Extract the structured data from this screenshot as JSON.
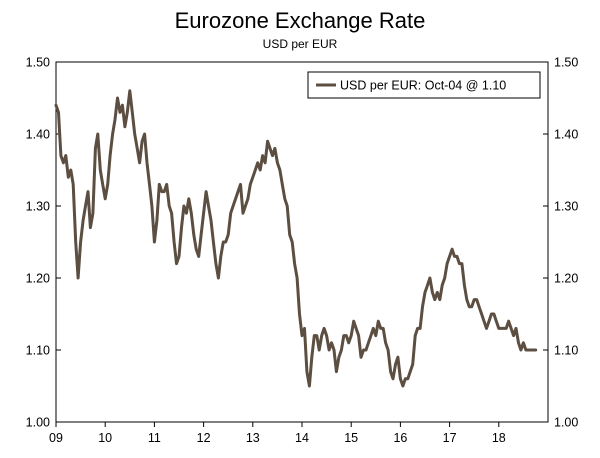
{
  "chart_data": {
    "type": "line",
    "title": "Eurozone Exchange Rate",
    "subtitle": "USD per EUR",
    "xlabel": "",
    "ylabel": "",
    "ylim": [
      1.0,
      1.5
    ],
    "xlim": [
      2009.0,
      2019.0
    ],
    "y_ticks": [
      "1.00",
      "1.10",
      "1.20",
      "1.30",
      "1.40",
      "1.50"
    ],
    "x_ticks": [
      "09",
      "10",
      "11",
      "12",
      "13",
      "14",
      "15",
      "16",
      "17",
      "18"
    ],
    "legend_position": "top-right",
    "line_color": "#5c4e40",
    "series": [
      {
        "name": "USD per EUR: Oct-04 @ 1.10",
        "x": [
          2009.0,
          2009.05,
          2009.1,
          2009.15,
          2009.2,
          2009.25,
          2009.3,
          2009.35,
          2009.4,
          2009.45,
          2009.5,
          2009.55,
          2009.6,
          2009.65,
          2009.7,
          2009.75,
          2009.8,
          2009.85,
          2009.9,
          2009.95,
          2010.0,
          2010.05,
          2010.1,
          2010.15,
          2010.2,
          2010.25,
          2010.3,
          2010.35,
          2010.4,
          2010.45,
          2010.5,
          2010.55,
          2010.6,
          2010.65,
          2010.7,
          2010.75,
          2010.8,
          2010.85,
          2010.9,
          2010.95,
          2011.0,
          2011.05,
          2011.1,
          2011.15,
          2011.2,
          2011.25,
          2011.3,
          2011.35,
          2011.4,
          2011.45,
          2011.5,
          2011.55,
          2011.6,
          2011.65,
          2011.7,
          2011.75,
          2011.8,
          2011.85,
          2011.9,
          2011.95,
          2012.0,
          2012.05,
          2012.1,
          2012.15,
          2012.2,
          2012.25,
          2012.3,
          2012.35,
          2012.4,
          2012.45,
          2012.5,
          2012.55,
          2012.6,
          2012.65,
          2012.7,
          2012.75,
          2012.8,
          2012.85,
          2012.9,
          2012.95,
          2013.0,
          2013.05,
          2013.1,
          2013.15,
          2013.2,
          2013.25,
          2013.3,
          2013.35,
          2013.4,
          2013.45,
          2013.5,
          2013.55,
          2013.6,
          2013.65,
          2013.7,
          2013.75,
          2013.8,
          2013.85,
          2013.9,
          2013.95,
          2014.0,
          2014.05,
          2014.1,
          2014.15,
          2014.2,
          2014.25,
          2014.3,
          2014.35,
          2014.4,
          2014.45,
          2014.5,
          2014.55,
          2014.6,
          2014.65,
          2014.7,
          2014.75,
          2014.8,
          2014.85,
          2014.9,
          2014.95,
          2015.0,
          2015.05,
          2015.1,
          2015.15,
          2015.2,
          2015.25,
          2015.3,
          2015.35,
          2015.4,
          2015.45,
          2015.5,
          2015.55,
          2015.6,
          2015.65,
          2015.7,
          2015.75,
          2015.8,
          2015.85,
          2015.9,
          2015.95,
          2016.0,
          2016.05,
          2016.1,
          2016.15,
          2016.2,
          2016.25,
          2016.3,
          2016.35,
          2016.4,
          2016.45,
          2016.5,
          2016.55,
          2016.6,
          2016.65,
          2016.7,
          2016.75,
          2016.8,
          2016.85,
          2016.9,
          2016.95,
          2017.0,
          2017.05,
          2017.1,
          2017.15,
          2017.2,
          2017.25,
          2017.3,
          2017.35,
          2017.4,
          2017.45,
          2017.5,
          2017.55,
          2017.6,
          2017.65,
          2017.7,
          2017.75,
          2017.8,
          2017.85,
          2017.9,
          2017.95,
          2018.0,
          2018.05,
          2018.1,
          2018.15,
          2018.2,
          2018.25,
          2018.3,
          2018.35,
          2018.4,
          2018.45,
          2018.5,
          2018.55,
          2018.6,
          2018.65,
          2018.7,
          2018.75
        ],
        "values": [
          1.44,
          1.43,
          1.37,
          1.36,
          1.37,
          1.34,
          1.35,
          1.33,
          1.25,
          1.2,
          1.25,
          1.28,
          1.3,
          1.32,
          1.27,
          1.29,
          1.38,
          1.4,
          1.35,
          1.33,
          1.31,
          1.33,
          1.37,
          1.4,
          1.42,
          1.45,
          1.43,
          1.44,
          1.41,
          1.43,
          1.46,
          1.43,
          1.4,
          1.38,
          1.36,
          1.39,
          1.4,
          1.36,
          1.33,
          1.3,
          1.25,
          1.28,
          1.33,
          1.32,
          1.32,
          1.33,
          1.3,
          1.29,
          1.25,
          1.22,
          1.23,
          1.27,
          1.3,
          1.29,
          1.31,
          1.29,
          1.26,
          1.24,
          1.23,
          1.26,
          1.29,
          1.32,
          1.3,
          1.28,
          1.25,
          1.22,
          1.2,
          1.23,
          1.25,
          1.25,
          1.26,
          1.29,
          1.3,
          1.31,
          1.32,
          1.33,
          1.29,
          1.3,
          1.31,
          1.33,
          1.34,
          1.35,
          1.36,
          1.35,
          1.37,
          1.36,
          1.39,
          1.38,
          1.37,
          1.38,
          1.36,
          1.35,
          1.33,
          1.31,
          1.3,
          1.26,
          1.25,
          1.22,
          1.2,
          1.15,
          1.12,
          1.13,
          1.07,
          1.05,
          1.09,
          1.12,
          1.12,
          1.1,
          1.12,
          1.13,
          1.12,
          1.1,
          1.11,
          1.1,
          1.07,
          1.09,
          1.1,
          1.12,
          1.12,
          1.11,
          1.12,
          1.14,
          1.13,
          1.12,
          1.09,
          1.1,
          1.1,
          1.11,
          1.12,
          1.13,
          1.12,
          1.14,
          1.13,
          1.13,
          1.11,
          1.1,
          1.07,
          1.06,
          1.08,
          1.09,
          1.06,
          1.05,
          1.06,
          1.06,
          1.07,
          1.08,
          1.12,
          1.13,
          1.13,
          1.16,
          1.18,
          1.19,
          1.2,
          1.18,
          1.17,
          1.18,
          1.17,
          1.19,
          1.2,
          1.22,
          1.23,
          1.24,
          1.23,
          1.23,
          1.22,
          1.22,
          1.19,
          1.17,
          1.16,
          1.16,
          1.17,
          1.17,
          1.16,
          1.15,
          1.14,
          1.13,
          1.14,
          1.15,
          1.15,
          1.14,
          1.13,
          1.13,
          1.13,
          1.13,
          1.14,
          1.13,
          1.12,
          1.13,
          1.11,
          1.1,
          1.11,
          1.1,
          1.1,
          1.1,
          1.1,
          1.1
        ]
      }
    ]
  }
}
